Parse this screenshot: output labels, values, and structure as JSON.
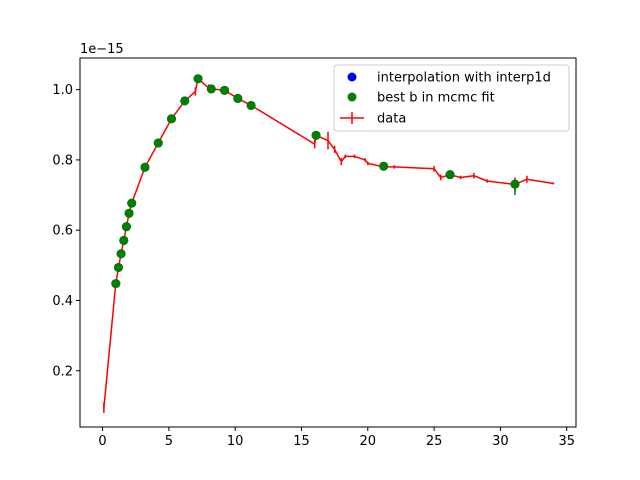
{
  "chart_data": {
    "type": "scatter",
    "offset_text": "1e−15",
    "xlim": [
      -1.7,
      35.7
    ],
    "ylim": [
      0.04,
      1.09
    ],
    "x_ticks": [
      0,
      5,
      10,
      15,
      20,
      25,
      30,
      35
    ],
    "y_ticks": [
      0.2,
      0.4,
      0.6,
      0.8,
      1.0
    ],
    "y_tick_labels": [
      "0.2",
      "0.4",
      "0.6",
      "0.8",
      "1.0"
    ],
    "legend_position": "top-right",
    "colors": {
      "interp": "#0000ff",
      "mcmc": "#008000",
      "data": "#ff0000"
    },
    "series": [
      {
        "name": "interpolation with interp1d",
        "marker": "circle",
        "x": [
          1.0,
          1.2,
          1.4,
          1.6,
          1.8,
          2.0,
          2.2,
          3.2,
          4.2,
          5.2,
          6.2,
          7.2,
          8.2,
          9.2,
          10.2,
          11.2,
          16.1,
          21.2,
          26.2,
          31.1
        ],
        "y": [
          0.448,
          0.494,
          0.533,
          0.571,
          0.61,
          0.648,
          0.677,
          0.779,
          0.848,
          0.917,
          0.968,
          1.031,
          1.002,
          0.998,
          0.975,
          0.955,
          0.87,
          0.782,
          0.758,
          0.731
        ]
      },
      {
        "name": "best b in mcmc fit",
        "marker": "circle",
        "x": [
          1.0,
          1.2,
          1.4,
          1.6,
          1.8,
          2.0,
          2.2,
          3.2,
          4.2,
          5.2,
          6.2,
          7.2,
          8.2,
          9.2,
          10.2,
          11.2,
          16.1,
          21.2,
          26.2,
          31.1
        ],
        "y": [
          0.448,
          0.494,
          0.533,
          0.571,
          0.61,
          0.648,
          0.677,
          0.779,
          0.848,
          0.917,
          0.968,
          1.031,
          1.002,
          0.998,
          0.975,
          0.955,
          0.87,
          0.782,
          0.758,
          0.731
        ]
      },
      {
        "name": "data",
        "marker": "errorbar-line",
        "x": [
          0.1,
          1.0,
          1.2,
          1.4,
          1.6,
          1.8,
          2.0,
          2.2,
          3.2,
          4.2,
          5.2,
          6.2,
          7.0,
          7.2,
          8.0,
          8.2,
          9.2,
          10.2,
          11.2,
          16.0,
          16.1,
          17.0,
          17.5,
          18.0,
          18.3,
          19.0,
          19.8,
          20.0,
          21.2,
          22.0,
          25.0,
          25.5,
          26.2,
          27.0,
          28.0,
          29.0,
          31.1,
          32.0,
          34.0
        ],
        "y": [
          0.095,
          0.448,
          0.494,
          0.533,
          0.571,
          0.61,
          0.648,
          0.677,
          0.779,
          0.848,
          0.917,
          0.968,
          0.995,
          1.031,
          1.005,
          1.002,
          0.998,
          0.975,
          0.955,
          0.845,
          0.87,
          0.855,
          0.83,
          0.795,
          0.81,
          0.81,
          0.8,
          0.79,
          0.78,
          0.78,
          0.775,
          0.75,
          0.758,
          0.75,
          0.755,
          0.74,
          0.73,
          0.745,
          0.733
        ],
        "yerr": [
          0.015,
          0,
          0,
          0,
          0,
          0,
          0,
          0,
          0,
          0,
          0,
          0,
          0.012,
          0,
          0.01,
          0,
          0,
          0,
          0,
          0.012,
          0.01,
          0.025,
          0.01,
          0.01,
          0.005,
          0.005,
          0.005,
          0.005,
          0.01,
          0.005,
          0.008,
          0.008,
          0.005,
          0.005,
          0.008,
          0.005,
          0.02,
          0.01,
          0.003
        ]
      }
    ]
  }
}
